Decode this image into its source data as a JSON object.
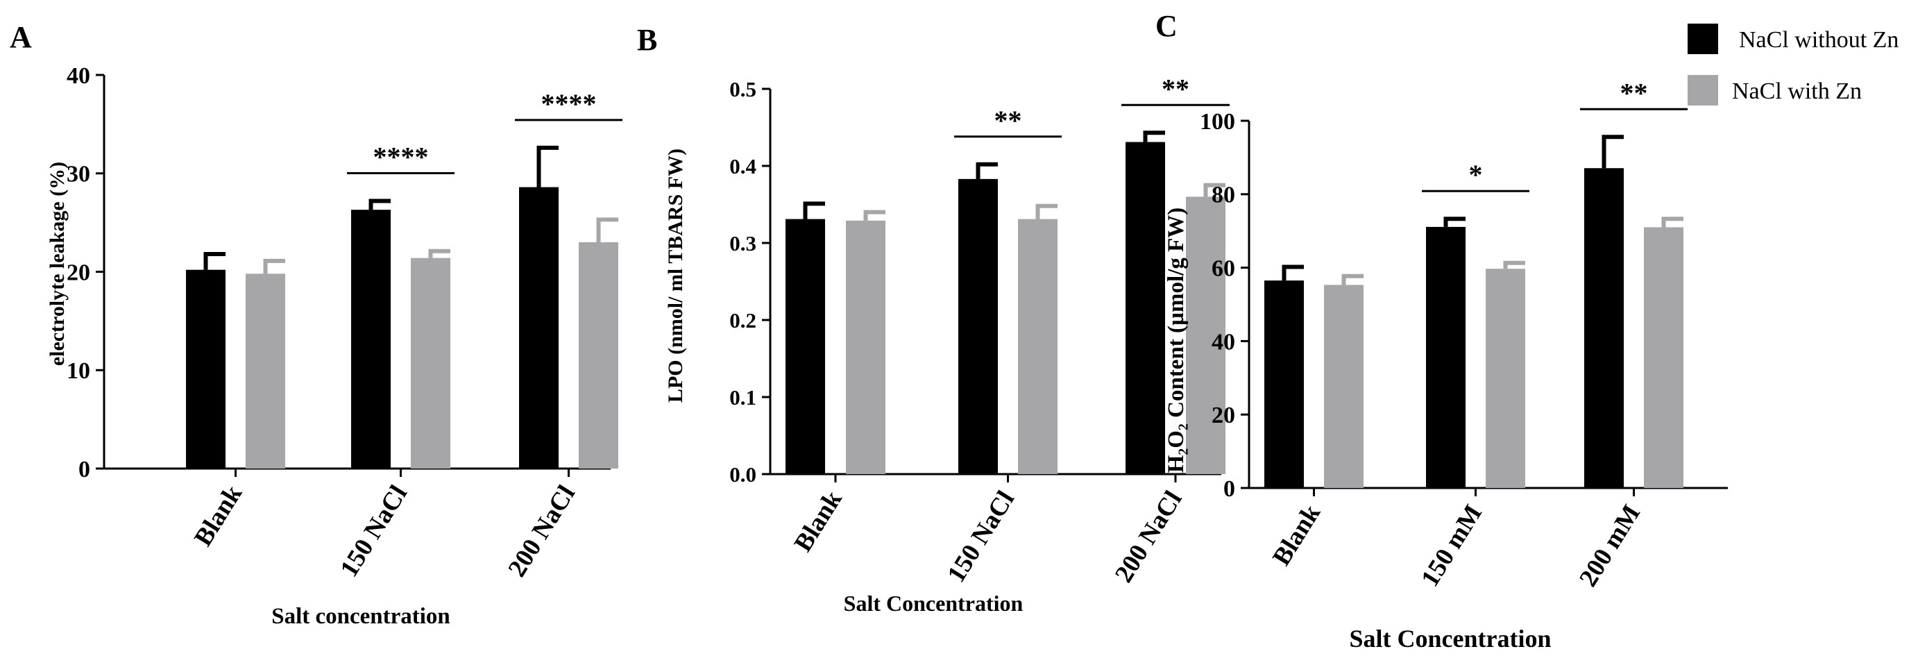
{
  "legend": {
    "series": [
      {
        "name": "NaCl without Zn",
        "color": "#000000"
      },
      {
        "name": "NaCl with Zn",
        "color": "#a6a6a8"
      }
    ]
  },
  "chart_data": [
    {
      "type": "bar",
      "panel_label": "A",
      "categories": [
        "Blank",
        "150 NaCl",
        "200 NaCl"
      ],
      "xlabel": "Salt concentration",
      "ylabel": "electrolyte leakage (%)",
      "ylim": [
        0,
        40
      ],
      "yticks": [
        0,
        10,
        20,
        30,
        40
      ],
      "tick_decimals": 0,
      "series": [
        {
          "name": "NaCl without Zn",
          "values": [
            20.2,
            26.3,
            28.6
          ],
          "errors": [
            1.6,
            0.9,
            4.0
          ],
          "color": "#000000"
        },
        {
          "name": "NaCl with Zn",
          "values": [
            19.8,
            21.4,
            23.0
          ],
          "errors": [
            1.3,
            0.7,
            2.3
          ],
          "color": "#a6a6a8"
        }
      ],
      "significance": [
        {
          "category": "150 NaCl",
          "label": "****"
        },
        {
          "category": "200 NaCl",
          "label": "****"
        }
      ]
    },
    {
      "type": "bar",
      "panel_label": "B",
      "categories": [
        "Blank",
        "150 NaCl",
        "200 NaCl"
      ],
      "xlabel": "Salt Concentration",
      "ylabel": "LPO (nmol/ ml TBARS FW)",
      "ylim": [
        0,
        0.5
      ],
      "yticks": [
        0.0,
        0.1,
        0.2,
        0.3,
        0.4,
        0.5
      ],
      "tick_decimals": 1,
      "series": [
        {
          "name": "NaCl without Zn",
          "values": [
            0.331,
            0.383,
            0.431
          ],
          "errors": [
            0.02,
            0.019,
            0.012
          ],
          "color": "#000000"
        },
        {
          "name": "NaCl with Zn",
          "values": [
            0.329,
            0.331,
            0.36
          ],
          "errors": [
            0.011,
            0.017,
            0.015
          ],
          "color": "#a6a6a8"
        }
      ],
      "significance": [
        {
          "category": "150 NaCl",
          "label": "**"
        },
        {
          "category": "200 NaCl",
          "label": "**"
        }
      ]
    },
    {
      "type": "bar",
      "panel_label": "C",
      "categories": [
        "Blank",
        "150 mM",
        "200 mM"
      ],
      "xlabel": "Salt Concentration",
      "ylabel": "H₂O₂ Content (µmol/g FW)",
      "ylim": [
        0,
        100
      ],
      "yticks": [
        0,
        20,
        40,
        60,
        80,
        100
      ],
      "tick_decimals": 0,
      "series": [
        {
          "name": "NaCl without Zn",
          "values": [
            56.5,
            71.1,
            87.1
          ],
          "errors": [
            3.7,
            2.2,
            8.5
          ],
          "color": "#000000"
        },
        {
          "name": "NaCl with Zn",
          "values": [
            55.3,
            59.7,
            71.0
          ],
          "errors": [
            2.4,
            1.6,
            2.3
          ],
          "color": "#a6a6a8"
        }
      ],
      "significance": [
        {
          "category": "150 mM",
          "label": "*"
        },
        {
          "category": "200 mM",
          "label": "**"
        }
      ]
    }
  ]
}
